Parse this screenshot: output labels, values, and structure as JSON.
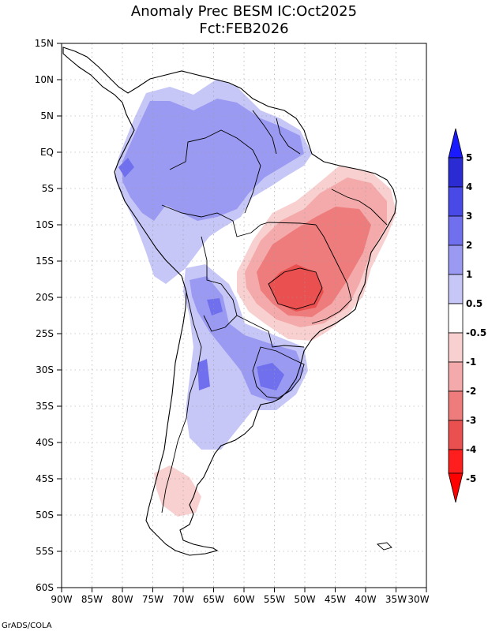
{
  "title": {
    "line1": "Anomaly Prec BESM IC:Oct2025",
    "line2": "Fct:FEB2026"
  },
  "credit": "GrADS/COLA",
  "y_ticks": [
    "15N",
    "10N",
    "5N",
    "EQ",
    "5S",
    "10S",
    "15S",
    "20S",
    "25S",
    "30S",
    "35S",
    "40S",
    "45S",
    "50S",
    "55S",
    "60S"
  ],
  "x_ticks": [
    "90W",
    "85W",
    "80W",
    "75W",
    "70W",
    "65W",
    "60W",
    "55W",
    "50W",
    "45W",
    "40W",
    "35W",
    "30W"
  ],
  "colorbar": {
    "labels": [
      "5",
      "4",
      "3",
      "2",
      "1",
      "0.5",
      "-0.5",
      "-1",
      "-2",
      "-3",
      "-4",
      "-5"
    ],
    "colors": [
      "#2b2bd4",
      "#4949e8",
      "#7070ee",
      "#9a9af2",
      "#c6c6f7",
      "#ffffff",
      "#f8d0d0",
      "#f4aaaa",
      "#ee7c7c",
      "#ea5050",
      "#ff1e1e"
    ],
    "top_arrow_color": "#1a1aff",
    "bottom_arrow_color": "#ff0000"
  },
  "map": {
    "lon_range": [
      -90,
      -30
    ],
    "lat_range": [
      -60,
      15
    ]
  }
}
